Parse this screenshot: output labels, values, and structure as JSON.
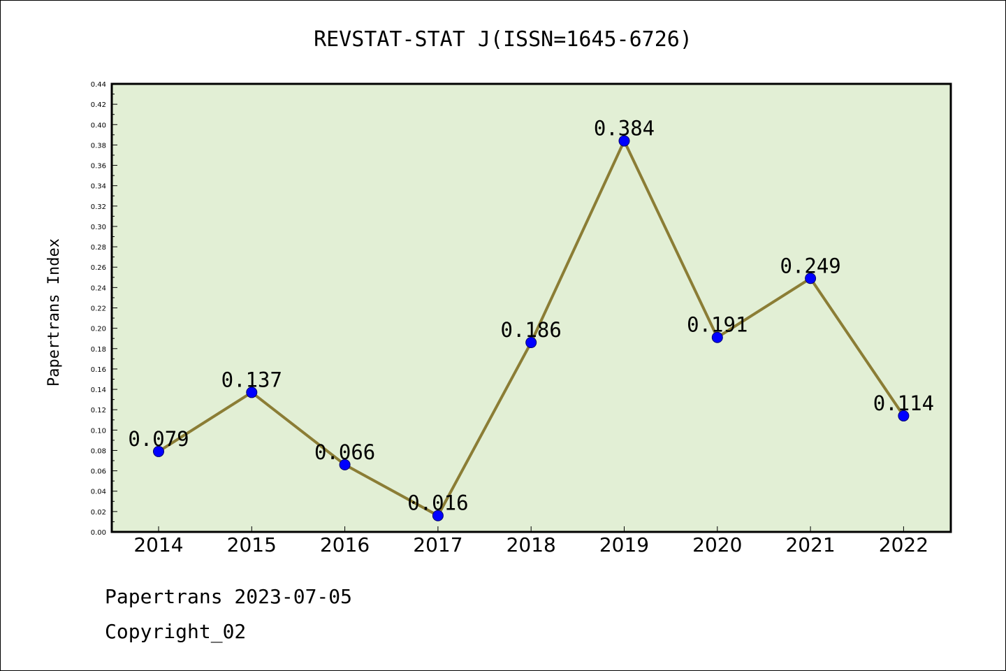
{
  "chart_data": {
    "type": "line",
    "title": "REVSTAT-STAT J(ISSN=1645-6726)",
    "xlabel": "",
    "ylabel": "Papertrans Index",
    "categories": [
      "2014",
      "2015",
      "2016",
      "2017",
      "2018",
      "2019",
      "2020",
      "2021",
      "2022"
    ],
    "values": [
      0.079,
      0.137,
      0.066,
      0.016,
      0.186,
      0.384,
      0.191,
      0.249,
      0.114
    ],
    "data_labels": [
      "0.079",
      "0.137",
      "0.066",
      "0.016",
      "0.186",
      "0.384",
      "0.191",
      "0.249",
      "0.114"
    ],
    "ylim": [
      0,
      0.44
    ],
    "yticks": [
      "0.00",
      "0.02",
      "0.04",
      "0.06",
      "0.08",
      "0.10",
      "0.12",
      "0.14",
      "0.16",
      "0.18",
      "0.20",
      "0.22",
      "0.24",
      "0.26",
      "0.28",
      "0.30",
      "0.32",
      "0.34",
      "0.36",
      "0.38",
      "0.40",
      "0.42",
      "0.44"
    ],
    "grid": false,
    "line_color": "#8b7d35",
    "marker_color": "#0000ff",
    "plot_background": "#e2efd5"
  },
  "footer": {
    "line1": "Papertrans 2023-07-05",
    "line2": "Copyright_02"
  }
}
